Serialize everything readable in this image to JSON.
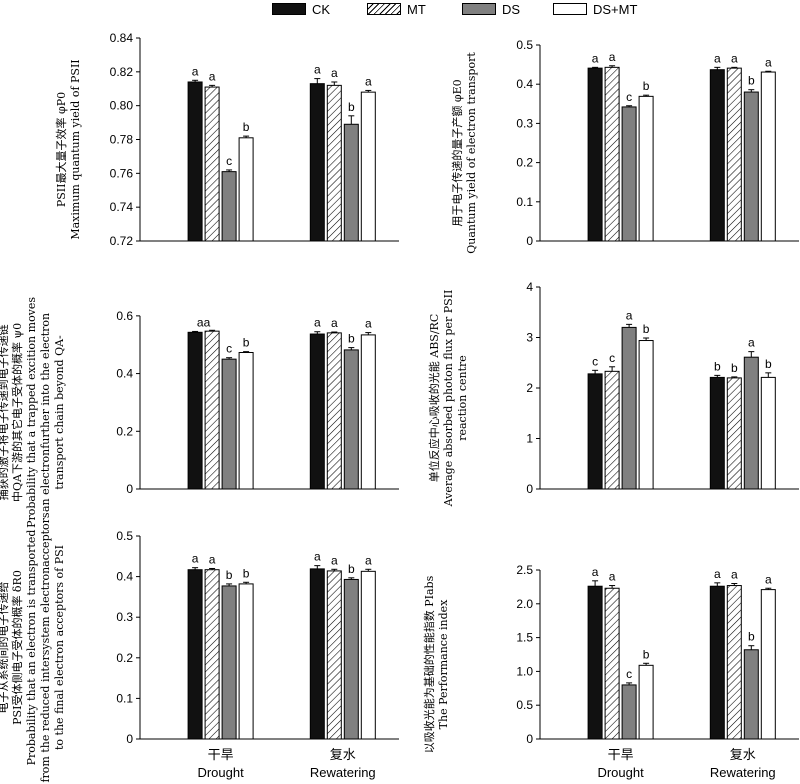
{
  "legend": [
    {
      "label": "CK",
      "style": "black"
    },
    {
      "label": "MT",
      "style": "hatch"
    },
    {
      "label": "DS",
      "style": "gray"
    },
    {
      "label": "DS+MT",
      "style": "white"
    }
  ],
  "colors": {
    "CK": "#111111",
    "MT": "#ffffff",
    "DS": "#808080",
    "DSMT": "#ffffff"
  },
  "chart_data": [
    {
      "type": "bar",
      "categories": [
        "干旱\nDrought",
        "复水\nRewatering"
      ],
      "ylabel_lines": [
        "PSII最大量子效率 φP0",
        "Maximum quantum yield of PSII"
      ],
      "ylim": [
        0.72,
        0.84
      ],
      "yticks": [
        0.72,
        0.74,
        0.76,
        0.78,
        0.8,
        0.82,
        0.84
      ],
      "series": [
        {
          "name": "CK",
          "values": [
            0.814,
            0.813
          ],
          "err": [
            0.001,
            0.003
          ],
          "letters": [
            "a",
            "a"
          ]
        },
        {
          "name": "MT",
          "values": [
            0.811,
            0.812
          ],
          "err": [
            0.001,
            0.002
          ],
          "letters": [
            "a",
            "a"
          ]
        },
        {
          "name": "DS",
          "values": [
            0.761,
            0.789
          ],
          "err": [
            0.001,
            0.005
          ],
          "letters": [
            "c",
            "b"
          ]
        },
        {
          "name": "DS+MT",
          "values": [
            0.781,
            0.808
          ],
          "err": [
            0.001,
            0.001
          ],
          "letters": [
            "b",
            "a"
          ]
        }
      ]
    },
    {
      "type": "bar",
      "categories": [
        "干旱\nDrought",
        "复水\nRewatering"
      ],
      "ylabel_lines": [
        "用于电子传递的量子产额 φE0",
        "Quantum yield of electron transport"
      ],
      "ylim": [
        0,
        0.5
      ],
      "yticks": [
        0,
        0.1,
        0.2,
        0.3,
        0.4,
        0.5
      ],
      "series": [
        {
          "name": "CK",
          "values": [
            0.441,
            0.437
          ],
          "err": [
            0.002,
            0.006
          ],
          "letters": [
            "a",
            "a"
          ]
        },
        {
          "name": "MT",
          "values": [
            0.443,
            0.441
          ],
          "err": [
            0.004,
            0.002
          ],
          "letters": [
            "a",
            "a"
          ]
        },
        {
          "name": "DS",
          "values": [
            0.342,
            0.38
          ],
          "err": [
            0.003,
            0.006
          ],
          "letters": [
            "c",
            "b"
          ]
        },
        {
          "name": "DS+MT",
          "values": [
            0.369,
            0.431
          ],
          "err": [
            0.003,
            0.002
          ],
          "letters": [
            "b",
            "a"
          ]
        }
      ]
    },
    {
      "type": "bar",
      "categories": [
        "干旱\nDrought",
        "复水\nRewatering"
      ],
      "ylabel_lines": [
        "捕获的激子将电子传递到电子传递链",
        "中QA下游的其它电子受体的概率 ψ0",
        "Probability that a trapped excition moves",
        "an electronfurther into the electron",
        "transport chain beyond QA-"
      ],
      "ylim": [
        0,
        0.7
      ],
      "yticks": [
        0,
        0.2,
        0.4,
        0.6
      ],
      "series": [
        {
          "name": "CK",
          "values": [
            0.543,
            0.537
          ],
          "err": [
            0.003,
            0.008
          ],
          "letters": [
            "a",
            "a"
          ]
        },
        {
          "name": "MT",
          "values": [
            0.547,
            0.541
          ],
          "err": [
            0.003,
            0.003
          ],
          "letters": [
            "a",
            "a"
          ]
        },
        {
          "name": "DS",
          "values": [
            0.45,
            0.482
          ],
          "err": [
            0.005,
            0.008
          ],
          "letters": [
            "c",
            "b"
          ]
        },
        {
          "name": "DS+MT",
          "values": [
            0.473,
            0.534
          ],
          "err": [
            0.003,
            0.008
          ],
          "letters": [
            "b",
            "a"
          ]
        }
      ],
      "group_letters": [
        "aa",
        ""
      ]
    },
    {
      "type": "bar",
      "categories": [
        "干旱\nDrought",
        "复水\nRewatering"
      ],
      "ylabel_lines": [
        "单位反应中心吸收的光能 ABS/RC",
        "Average absorbed photon flux per PSII",
        "reaction centre"
      ],
      "ylim": [
        0,
        4
      ],
      "yticks": [
        0,
        1,
        2,
        3,
        4
      ],
      "series": [
        {
          "name": "CK",
          "values": [
            2.28,
            2.21
          ],
          "err": [
            0.07,
            0.04
          ],
          "letters": [
            "c",
            "b"
          ]
        },
        {
          "name": "MT",
          "values": [
            2.33,
            2.2
          ],
          "err": [
            0.09,
            0.02
          ],
          "letters": [
            "c",
            "b"
          ]
        },
        {
          "name": "DS",
          "values": [
            3.2,
            2.61
          ],
          "err": [
            0.06,
            0.11
          ],
          "letters": [
            "a",
            "a"
          ]
        },
        {
          "name": "DS+MT",
          "values": [
            2.94,
            2.21
          ],
          "err": [
            0.05,
            0.09
          ],
          "letters": [
            "b",
            "b"
          ]
        }
      ]
    },
    {
      "type": "bar",
      "categories": [
        "干旱\nDrought",
        "复水\nRewatering"
      ],
      "ylabel_lines": [
        "电子从系统间的电子传递给",
        "PSI受体侧电子受体的概率 δR0",
        "Probability that an electron is transported",
        "from the reduced intersystem electronacceptors",
        "to the final electron acceptors of PSI"
      ],
      "ylim": [
        0,
        0.5
      ],
      "yticks": [
        0,
        0.1,
        0.2,
        0.3,
        0.4,
        0.5
      ],
      "series": [
        {
          "name": "CK",
          "values": [
            0.417,
            0.419
          ],
          "err": [
            0.005,
            0.008
          ],
          "letters": [
            "a",
            "a"
          ]
        },
        {
          "name": "MT",
          "values": [
            0.417,
            0.414
          ],
          "err": [
            0.003,
            0.004
          ],
          "letters": [
            "a",
            "a"
          ]
        },
        {
          "name": "DS",
          "values": [
            0.377,
            0.393
          ],
          "err": [
            0.005,
            0.004
          ],
          "letters": [
            "b",
            "b"
          ]
        },
        {
          "name": "DS+MT",
          "values": [
            0.382,
            0.413
          ],
          "err": [
            0.004,
            0.005
          ],
          "letters": [
            "b",
            "a"
          ]
        }
      ]
    },
    {
      "type": "bar",
      "categories": [
        "干旱\nDrought",
        "复水\nRewatering"
      ],
      "ylabel_lines": [
        "以吸收光能为基础的性能指数 PIabs",
        "The Performance index"
      ],
      "ylim": [
        0,
        2.5
      ],
      "yticks": [
        0,
        0.5,
        1.0,
        1.5,
        2.0,
        2.5
      ],
      "series": [
        {
          "name": "CK",
          "values": [
            2.26,
            2.26
          ],
          "err": [
            0.08,
            0.05
          ],
          "letters": [
            "a",
            "a"
          ]
        },
        {
          "name": "MT",
          "values": [
            2.23,
            2.27
          ],
          "err": [
            0.04,
            0.03
          ],
          "letters": [
            "a",
            "a"
          ]
        },
        {
          "name": "DS",
          "values": [
            0.8,
            1.32
          ],
          "err": [
            0.03,
            0.06
          ],
          "letters": [
            "c",
            "b"
          ]
        },
        {
          "name": "DS+MT",
          "values": [
            1.09,
            2.21
          ],
          "err": [
            0.03,
            0.02
          ],
          "letters": [
            "b",
            "a"
          ]
        }
      ]
    }
  ]
}
